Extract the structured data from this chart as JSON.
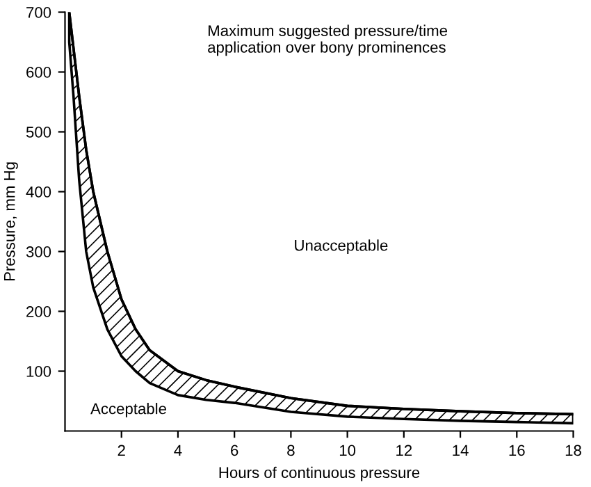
{
  "chart_data": {
    "type": "line",
    "xlabel": "Hours of continuous pressure",
    "ylabel": "Pressure, mm Hg",
    "annotations": [
      "Maximum suggested pressure/time\napplication over bony prominences",
      "Unacceptable",
      "Acceptable"
    ],
    "x": [
      0.15,
      0.3,
      0.5,
      0.75,
      1,
      1.5,
      2,
      2.5,
      3,
      4,
      5,
      6,
      8,
      10,
      12,
      14,
      16,
      18
    ],
    "series": [
      {
        "color": "#000000",
        "values": [
          700,
          640,
          560,
          470,
          400,
          300,
          220,
          170,
          135,
          100,
          85,
          74,
          55,
          42,
          37,
          33,
          30,
          28
        ],
        "lower": [
          650,
          560,
          420,
          300,
          240,
          170,
          125,
          100,
          80,
          60,
          52,
          47,
          32,
          24,
          20,
          17,
          15,
          13
        ],
        "upper": [
          700,
          640,
          560,
          470,
          400,
          300,
          220,
          170,
          135,
          100,
          85,
          74,
          55,
          42,
          37,
          33,
          30,
          28
        ]
      }
    ],
    "xlim": [
      0,
      18
    ],
    "ylim": [
      0,
      700
    ],
    "xticks": [
      2,
      4,
      6,
      8,
      10,
      12,
      14,
      16,
      18
    ],
    "yticks": [
      100,
      200,
      300,
      400,
      500,
      600,
      700
    ],
    "grid": false,
    "legend": false,
    "marker": "none",
    "line_style": "solid"
  }
}
